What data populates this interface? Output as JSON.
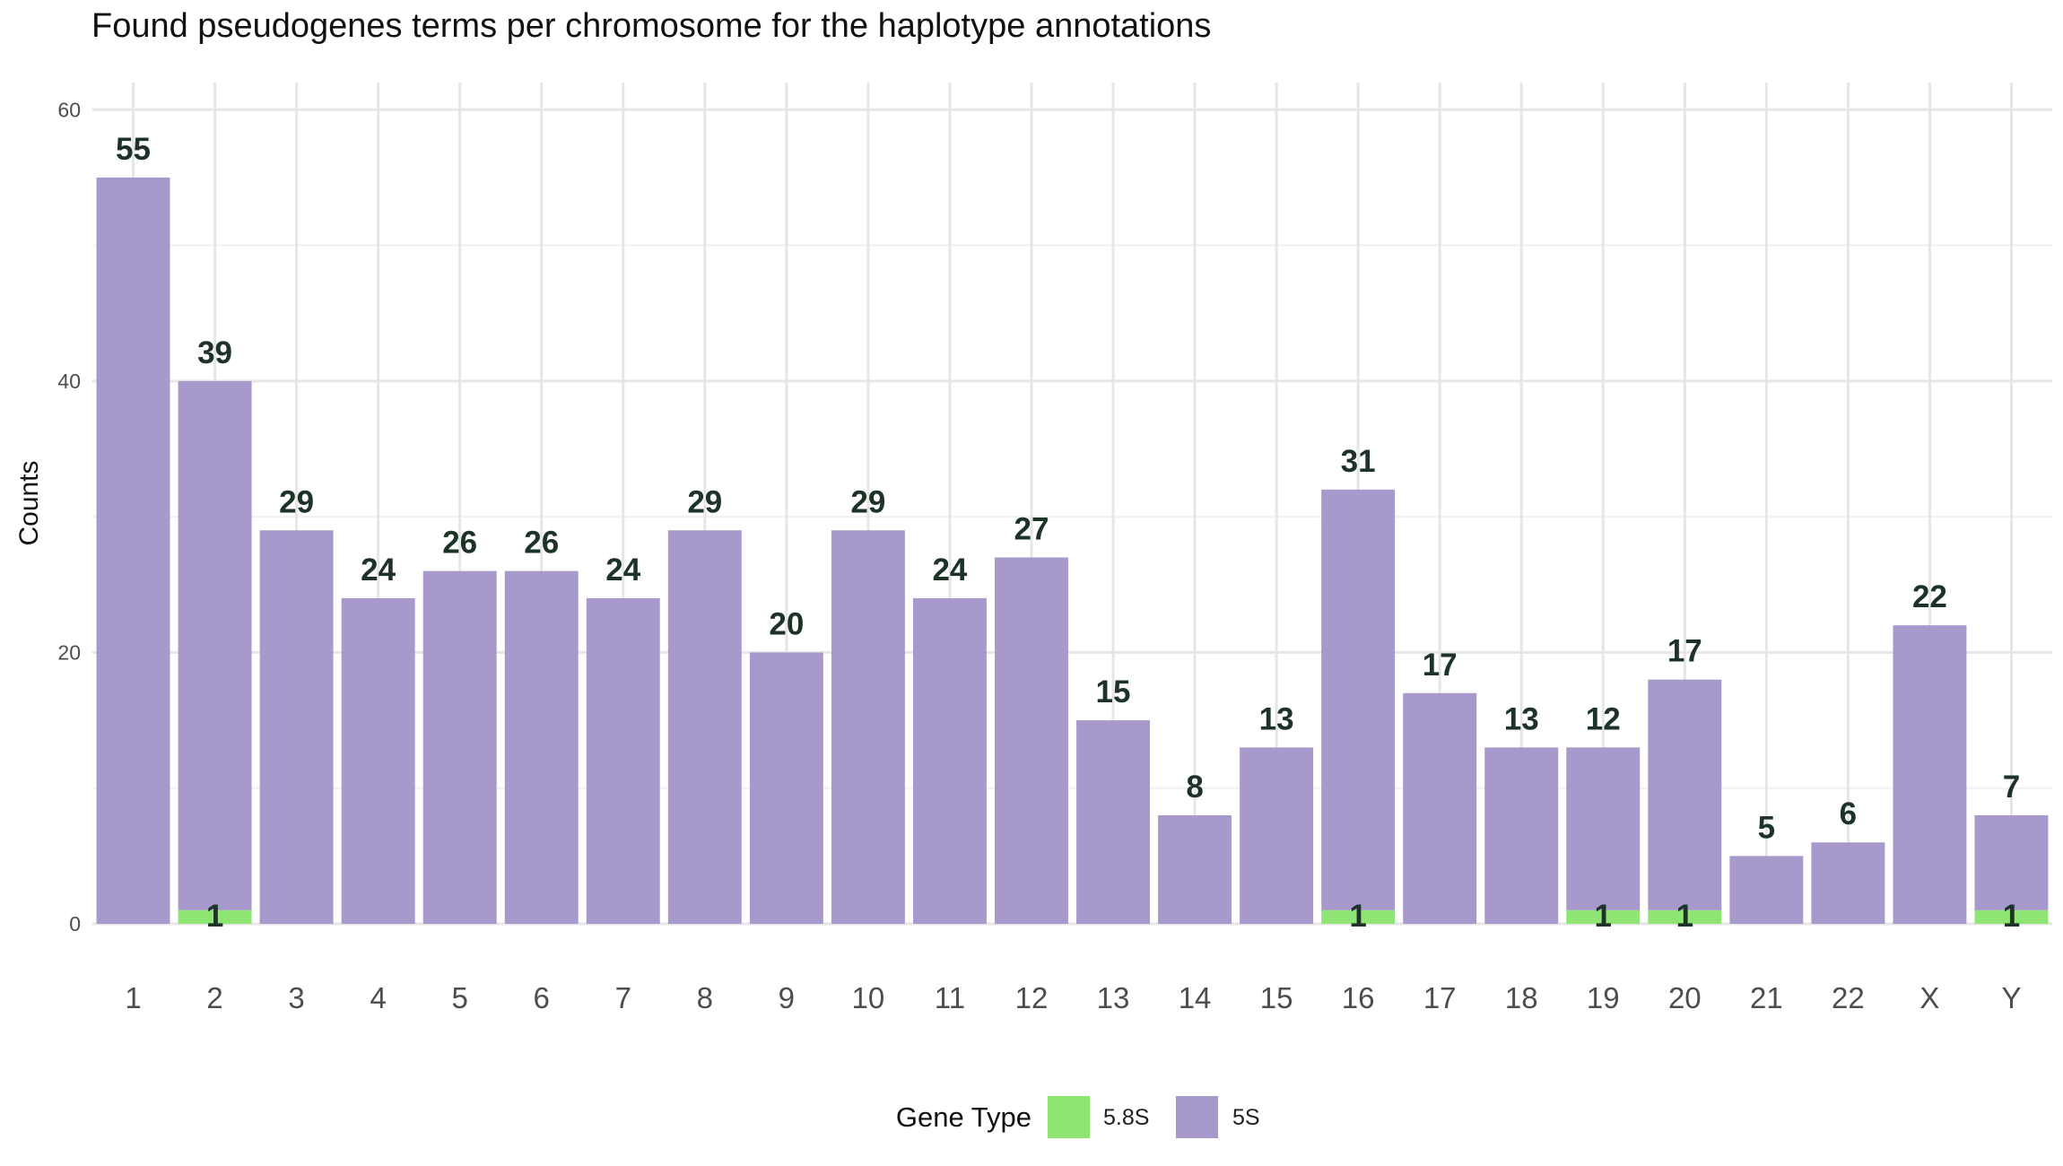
{
  "chart_data": {
    "type": "bar",
    "stacked": true,
    "title": "Found pseudogenes terms per chromosome for the haplotype annotations",
    "xlabel": "",
    "ylabel": "Counts",
    "ylim": [
      0,
      62
    ],
    "yticks": [
      0,
      20,
      40,
      60
    ],
    "grid": true,
    "legend": {
      "title": "Gene Type",
      "position": "bottom"
    },
    "categories": [
      "1",
      "2",
      "3",
      "4",
      "5",
      "6",
      "7",
      "8",
      "9",
      "10",
      "11",
      "12",
      "13",
      "14",
      "15",
      "16",
      "17",
      "18",
      "19",
      "20",
      "21",
      "22",
      "X",
      "Y"
    ],
    "series": [
      {
        "name": "5.8S",
        "color": "#8FE574",
        "values": [
          0,
          1,
          0,
          0,
          0,
          0,
          0,
          0,
          0,
          0,
          0,
          0,
          0,
          0,
          0,
          1,
          0,
          0,
          1,
          1,
          0,
          0,
          0,
          1
        ]
      },
      {
        "name": "5S",
        "color": "#A899CC",
        "values": [
          55,
          39,
          29,
          24,
          26,
          26,
          24,
          29,
          20,
          29,
          24,
          27,
          15,
          8,
          13,
          31,
          17,
          13,
          12,
          17,
          5,
          6,
          22,
          7
        ]
      }
    ]
  }
}
